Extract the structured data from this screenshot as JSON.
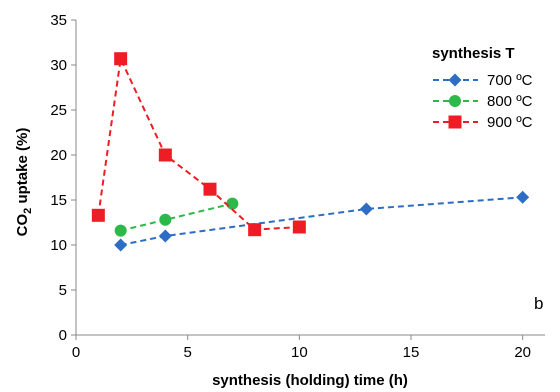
{
  "chart_data": {
    "type": "line",
    "xlabel": "synthesis (holding) time (h)",
    "ylabel_prefix": "CO",
    "ylabel_sub": "2",
    "ylabel_suffix": " uptake (%)",
    "xlim": [
      0,
      21
    ],
    "ylim": [
      0,
      35
    ],
    "xticks": [
      0,
      5,
      10,
      15,
      20
    ],
    "yticks": [
      0,
      5,
      10,
      15,
      20,
      25,
      30,
      35
    ],
    "legend_title": "synthesis T",
    "legend_position": "top-right",
    "panel_label": "b",
    "grid": false,
    "series": [
      {
        "name": "700 ºC",
        "color": "#2e6dc4",
        "marker": "diamond",
        "x": [
          2,
          4,
          13,
          20
        ],
        "y": [
          10.0,
          11.0,
          14.0,
          15.3
        ]
      },
      {
        "name": "800 ºC",
        "color": "#2db84a",
        "marker": "circle",
        "x": [
          2,
          4,
          7
        ],
        "y": [
          11.6,
          12.8,
          14.6
        ]
      },
      {
        "name": "900 ºC",
        "color": "#ee1c25",
        "marker": "square",
        "x": [
          1,
          2,
          4,
          6,
          8,
          10
        ],
        "y": [
          13.3,
          30.7,
          20.0,
          16.2,
          11.7,
          12.0
        ]
      }
    ]
  }
}
